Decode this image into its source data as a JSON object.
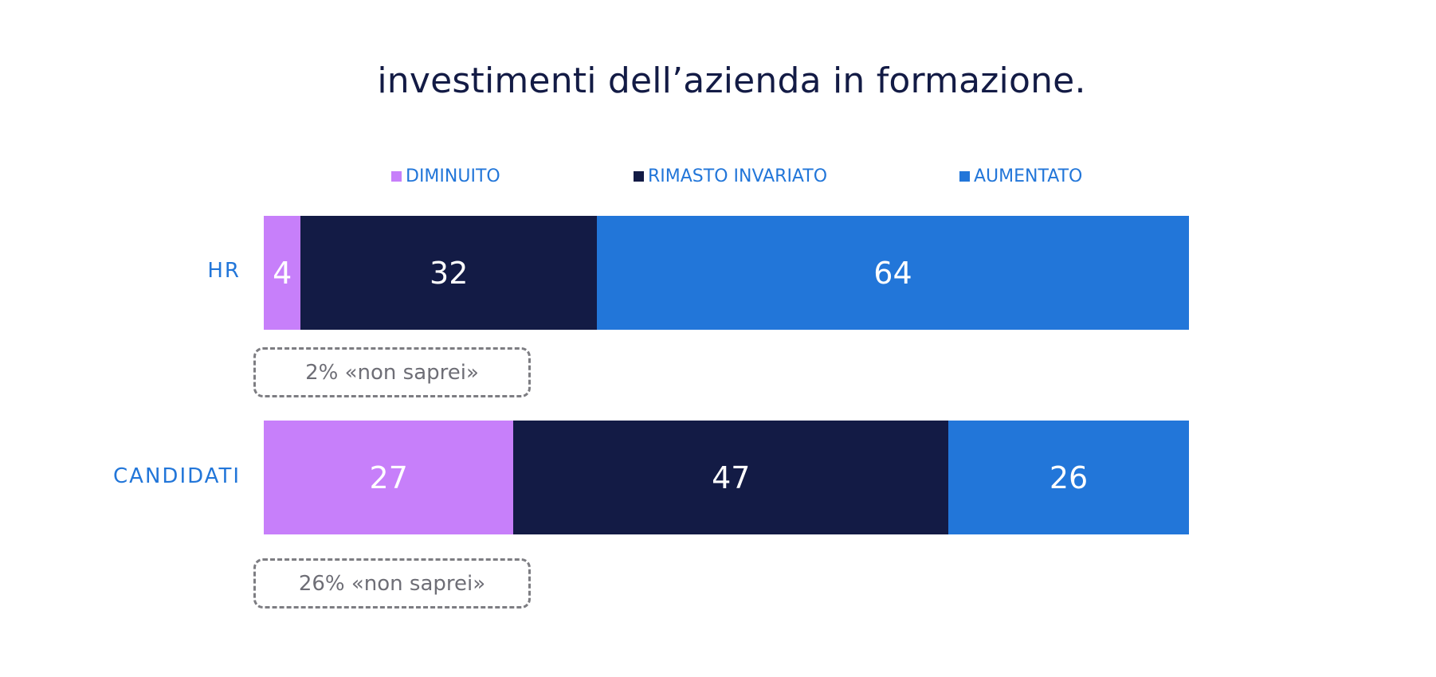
{
  "chart_data": {
    "type": "bar",
    "orientation": "horizontal",
    "stacked": true,
    "title": "investimenti dell’azienda in formazione.",
    "categories": [
      "HR",
      "CANDIDATI"
    ],
    "series": [
      {
        "name": "DIMINUITO",
        "color": "#c77ffa",
        "values": [
          4,
          27
        ]
      },
      {
        "name": "RIMASTO INVARIATO",
        "color": "#131b45",
        "values": [
          32,
          47
        ]
      },
      {
        "name": "AUMENTATO",
        "color": "#2276d9",
        "values": [
          64,
          26
        ]
      }
    ],
    "xlim": [
      0,
      100
    ],
    "grid": false,
    "legend_position": "top",
    "notes": [
      "2% «non saprei»",
      "26% «non saprei»"
    ]
  }
}
